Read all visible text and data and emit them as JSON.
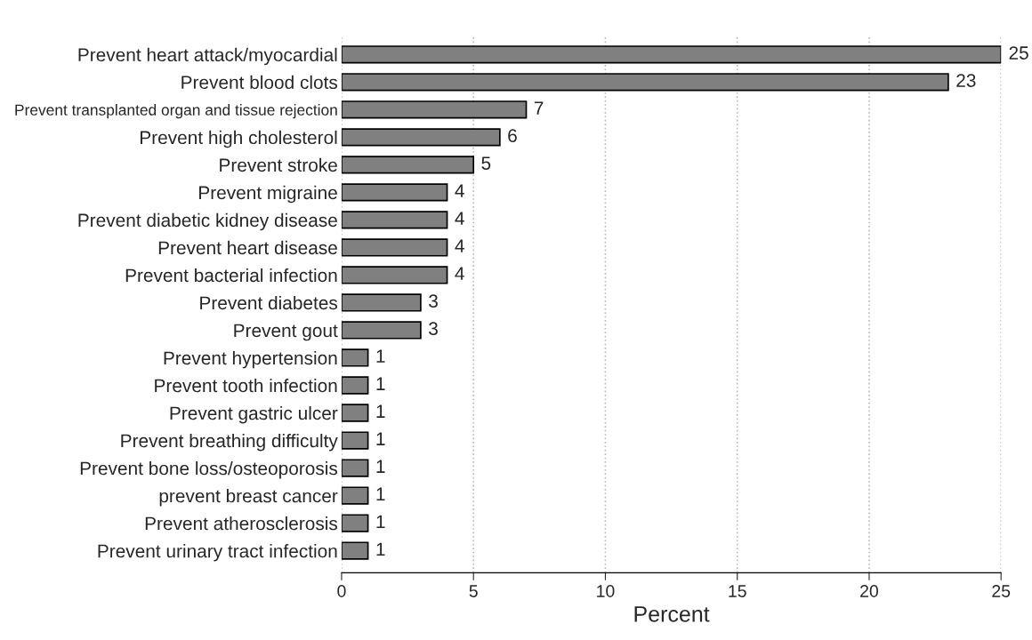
{
  "chart_data": {
    "type": "bar",
    "orientation": "horizontal",
    "xlabel": "Percent",
    "categories": [
      "Prevent heart attack/myocardial",
      "Prevent blood clots",
      "Prevent transplanted organ and tissue rejection",
      "Prevent high cholesterol",
      "Prevent stroke",
      "Prevent migraine",
      "Prevent diabetic kidney disease",
      "Prevent heart disease",
      "Prevent bacterial infection",
      "Prevent diabetes",
      "Prevent gout",
      "Prevent hypertension",
      "Prevent tooth infection",
      "Prevent gastric ulcer",
      "Prevent breathing difficulty",
      "Prevent bone loss/osteoporosis",
      "prevent breast cancer",
      "Prevent atherosclerosis",
      "Prevent urinary tract infection"
    ],
    "values": [
      25,
      23,
      7,
      6,
      5,
      4,
      4,
      4,
      4,
      3,
      3,
      1,
      1,
      1,
      1,
      1,
      1,
      1,
      1
    ],
    "color": "#808080",
    "data_labels": true,
    "xlim": [
      0,
      25
    ],
    "xticks": [
      0,
      5,
      10,
      15,
      20,
      25
    ],
    "grid": "x",
    "legend": false
  }
}
